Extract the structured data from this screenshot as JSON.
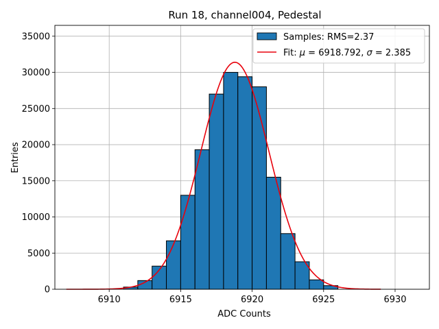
{
  "chart_data": {
    "type": "bar",
    "title": "Run 18, channel004, Pedestal",
    "xlabel": "ADC Counts",
    "ylabel": "Entries",
    "xlim": [
      6906.2,
      6932.4
    ],
    "ylim": [
      0,
      36500
    ],
    "xticks": [
      6910,
      6915,
      6920,
      6925,
      6930
    ],
    "yticks": [
      0,
      5000,
      10000,
      15000,
      20000,
      25000,
      30000,
      35000
    ],
    "grid": true,
    "legend_position": "top-right",
    "histogram": {
      "name": "Samples: RMS=2.37",
      "color": "#1f77b4",
      "bin_edges": [
        6911,
        6912,
        6913,
        6914,
        6915,
        6916,
        6917,
        6918,
        6919,
        6920,
        6921,
        6922,
        6923,
        6924,
        6925,
        6926
      ],
      "counts": [
        300,
        1200,
        3200,
        6700,
        13000,
        19300,
        27000,
        30000,
        29400,
        28000,
        15500,
        7700,
        3800,
        1300,
        500
      ]
    },
    "fit": {
      "name_prefix": "Fit: ",
      "mu_symbol": "μ",
      "mu_text": " = 6918.792, ",
      "sigma_symbol": "σ",
      "sigma_text": " = 2.385",
      "color": "#e8000b",
      "mu": 6918.792,
      "sigma": 2.385,
      "amplitude": 31400,
      "x_range": [
        6907,
        6929
      ]
    }
  }
}
